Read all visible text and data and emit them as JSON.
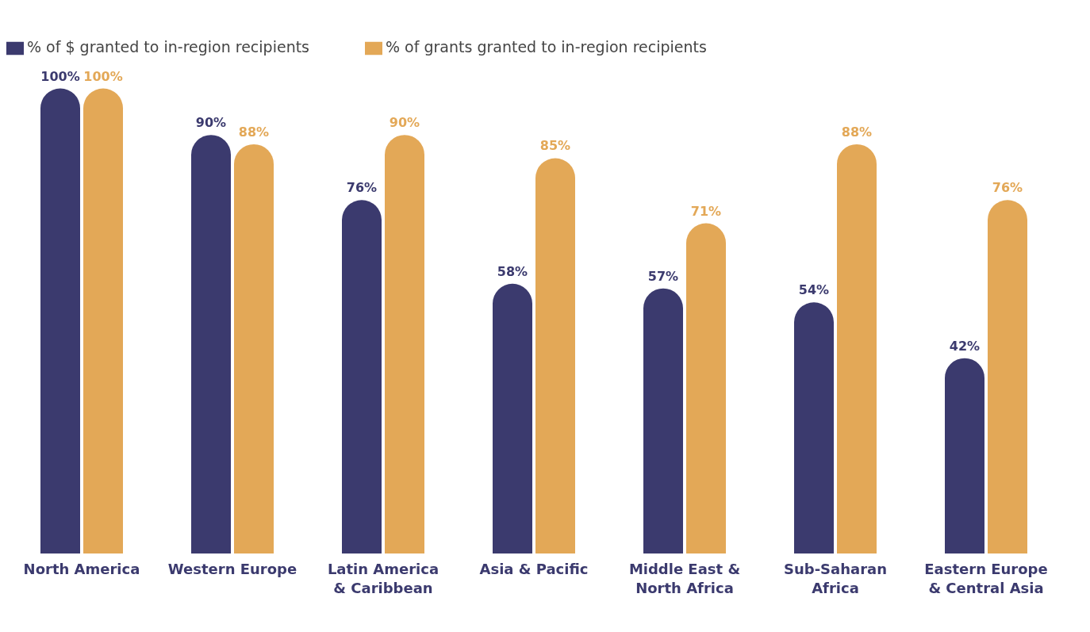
{
  "chart_data": {
    "type": "bar",
    "categories": [
      "North America",
      "Western Europe",
      "Latin America & Caribbean",
      "Asia & Pacific",
      "Middle East & North Africa",
      "Sub-Saharan Africa",
      "Eastern Europe & Central Asia"
    ],
    "series": [
      {
        "name": "% of $ granted to in-region recipients",
        "color": "#3b3a6e",
        "values": [
          100,
          90,
          76,
          58,
          57,
          54,
          42
        ],
        "value_labels": [
          "100%",
          "90%",
          "76%",
          "58%",
          "57%",
          "54%",
          "42%"
        ]
      },
      {
        "name": "% of grants granted to in-region recipients",
        "color": "#e3a857",
        "values": [
          100,
          88,
          90,
          85,
          71,
          88,
          76
        ],
        "value_labels": [
          "100%",
          "88%",
          "90%",
          "85%",
          "71%",
          "88%",
          "76%"
        ]
      }
    ],
    "legend": "top left"
  }
}
